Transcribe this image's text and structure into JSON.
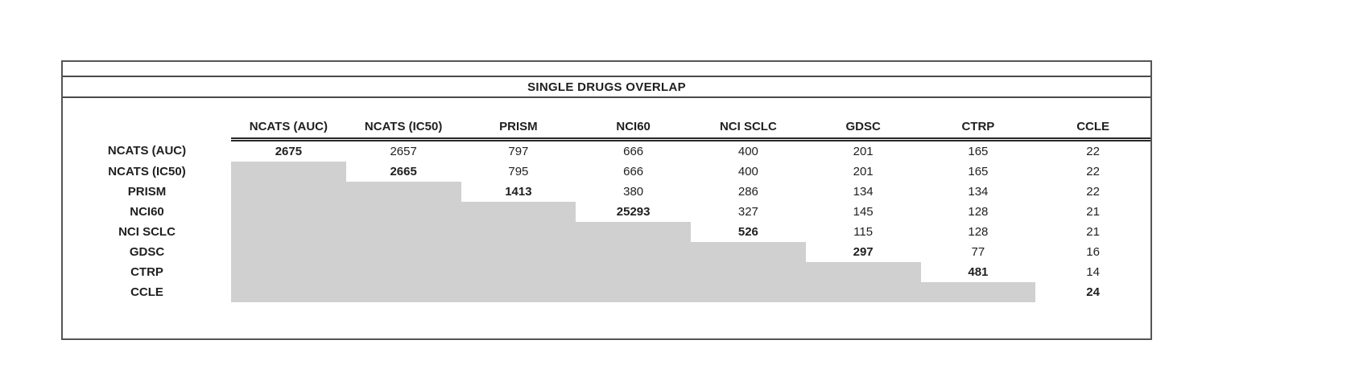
{
  "chart_data": {
    "type": "table",
    "title": "SINGLE DRUGS OVERLAP",
    "column_headers": [
      "NCATS (AUC)",
      "NCATS (IC50)",
      "PRISM",
      "NCI60",
      "NCI SCLC",
      "GDSC",
      "CTRP",
      "CCLE"
    ],
    "row_headers": [
      "NCATS (AUC)",
      "NCATS (IC50)",
      "PRISM",
      "NCI60",
      "NCI SCLC",
      "GDSC",
      "CTRP",
      "CCLE"
    ],
    "matrix": [
      [
        "2675",
        "2657",
        "797",
        "666",
        "400",
        "201",
        "165",
        "22"
      ],
      [
        null,
        "2665",
        "795",
        "666",
        "400",
        "201",
        "165",
        "22"
      ],
      [
        null,
        null,
        "1413",
        "380",
        "286",
        "134",
        "134",
        "22"
      ],
      [
        null,
        null,
        null,
        "25293",
        "327",
        "145",
        "128",
        "21"
      ],
      [
        null,
        null,
        null,
        null,
        "526",
        "115",
        "128",
        "21"
      ],
      [
        null,
        null,
        null,
        null,
        null,
        "297",
        "77",
        "16"
      ],
      [
        null,
        null,
        null,
        null,
        null,
        null,
        "481",
        "14"
      ],
      [
        null,
        null,
        null,
        null,
        null,
        null,
        null,
        "24"
      ]
    ],
    "colors": {
      "shaded_cell": "#d0d0d0",
      "border": "#4a4a4a",
      "text": "#1f1f1f",
      "background": "#ffffff"
    }
  }
}
